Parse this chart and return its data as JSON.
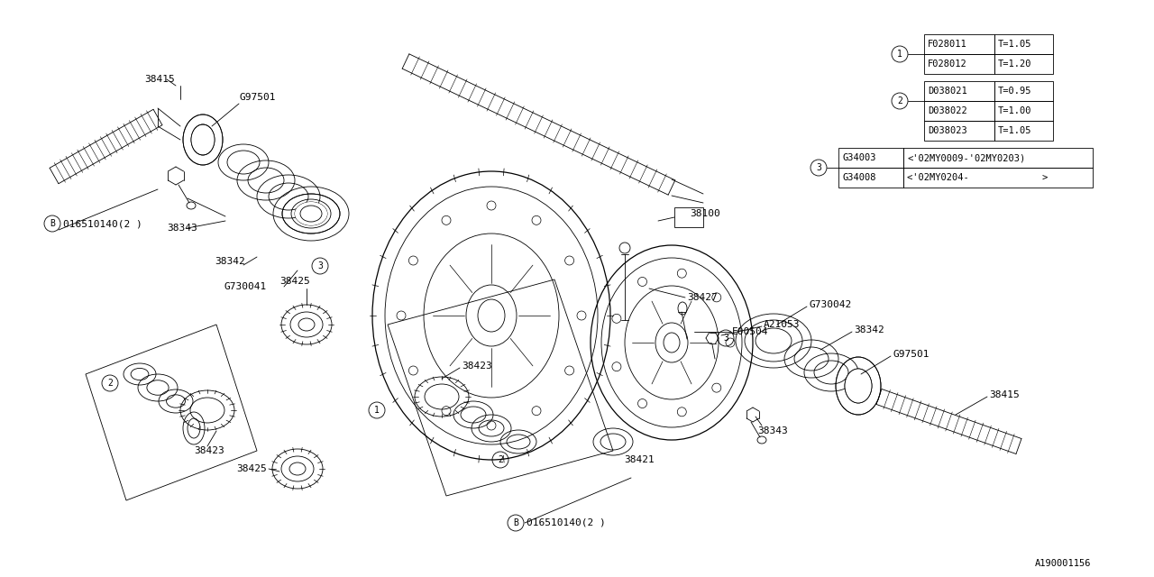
{
  "bg_color": "#ffffff",
  "line_color": "#000000",
  "fig_w": 12.8,
  "fig_h": 6.4,
  "dpi": 100,
  "watermark": "A190001156",
  "table1_rows": [
    [
      "F028011",
      "T=1.05"
    ],
    [
      "F028012",
      "T=1.20"
    ]
  ],
  "table2_rows": [
    [
      "D038021",
      "T=0.95"
    ],
    [
      "D038022",
      "T=1.00"
    ],
    [
      "D038023",
      "T=1.05"
    ]
  ],
  "table3_rows": [
    [
      "G34003",
      "<'02MY0009-'02MY0203)"
    ],
    [
      "G34008",
      "<'02MY0204-             >"
    ]
  ]
}
